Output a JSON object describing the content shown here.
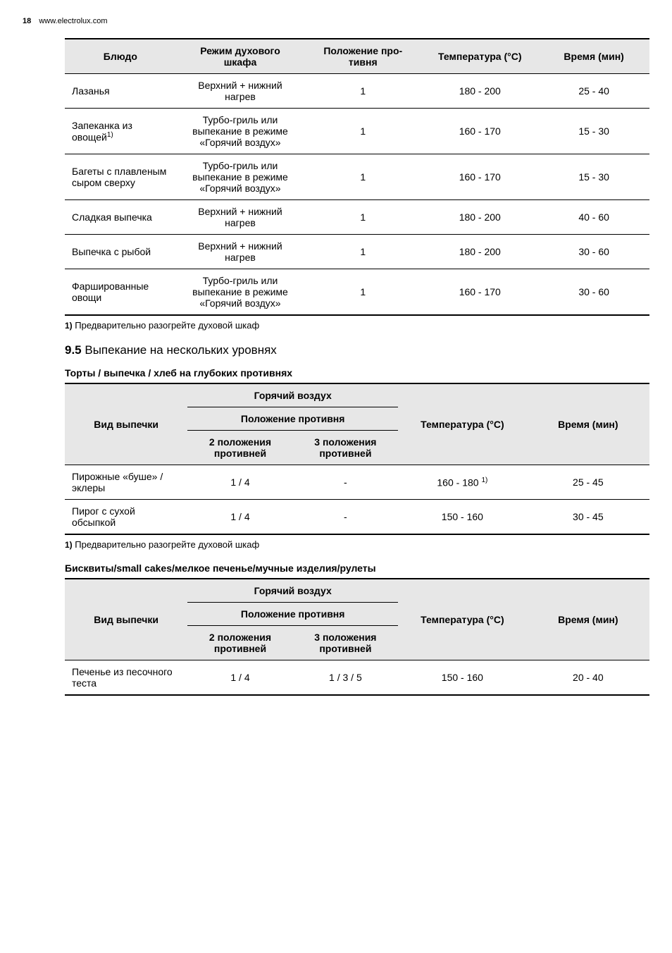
{
  "page": {
    "number": "18",
    "site": "www.electrolux.com"
  },
  "table1": {
    "headers": {
      "dish": "Блюдо",
      "mode": "Режим духового шкафа",
      "pos": "Положение про­тивня",
      "temp": "Температура (°C)",
      "time": "Время (мин)"
    },
    "rows": [
      {
        "dish": "Лазанья",
        "mode": "Верхний + ниж­ний нагрев",
        "pos": "1",
        "temp": "180 - 200",
        "time": "25 - 40"
      },
      {
        "dish": "Запеканка из овощей",
        "dish_sup": "1)",
        "mode": "Турбо-гриль или выпекание в режиме «Го­рячий воздух»",
        "pos": "1",
        "temp": "160 - 170",
        "time": "15 - 30"
      },
      {
        "dish": "Багеты с пла­вленым сыром сверху",
        "mode": "Турбо-гриль или выпекание в режиме «Го­рячий воздух»",
        "pos": "1",
        "temp": "160 - 170",
        "time": "15 - 30"
      },
      {
        "dish": "Сладкая выпеч­ка",
        "mode": "Верхний + ниж­ний нагрев",
        "pos": "1",
        "temp": "180 - 200",
        "time": "40 - 60"
      },
      {
        "dish": "Выпечка с рыб­ой",
        "mode": "Верхний + ниж­ний нагрев",
        "pos": "1",
        "temp": "180 - 200",
        "time": "30 - 60"
      },
      {
        "dish": "Фарширован­ные овощи",
        "mode": "Турбо-гриль или выпекание в режиме «Го­рячий воздух»",
        "pos": "1",
        "temp": "160 - 170",
        "time": "30 - 60"
      }
    ],
    "col_widths": [
      "19%",
      "22%",
      "20%",
      "20%",
      "19%"
    ]
  },
  "footnote1": {
    "num": "1)",
    "text": " Предварительно разогрейте духовой шкаф"
  },
  "section95": {
    "num": "9.5",
    "title": " Выпекание на нескольких уровнях"
  },
  "subhead_torty": "Торты / выпечка / хлеб на глубоких противнях",
  "table2": {
    "headers": {
      "type": "Вид выпечки",
      "hotair": "Горячий воздух",
      "trackpos": "Положение противня",
      "pos2": "2 положения противней",
      "pos3": "3 положения противней",
      "temp": "Температура (°C)",
      "time": "Время (мин)"
    },
    "rows": [
      {
        "type": "Пирожные «бу­ше» / эклеры",
        "p2": "1 / 4",
        "p3": "-",
        "temp": "160 - 180 ",
        "temp_sup": "1)",
        "time": "25 - 45"
      },
      {
        "type": "Пирог с сухой обсыпкой",
        "p2": "1 / 4",
        "p3": "-",
        "temp": "150 - 160",
        "time": "30 - 45"
      }
    ],
    "col_widths": [
      "21%",
      "18%",
      "18%",
      "22%",
      "21%"
    ]
  },
  "footnote2": {
    "num": "1)",
    "text": " Предварительно разогрейте духовой шкаф"
  },
  "subhead_biskvity": "Бисквиты/small cakes/мелкое печенье/мучные изделия/рулеты",
  "table3": {
    "headers": {
      "type": "Вид выпечки",
      "hotair": "Горячий воздух",
      "trackpos": "Положение противня",
      "pos2": "2 положения противней",
      "pos3": "3 положения противней",
      "temp": "Температура (°C)",
      "time": "Время (мин)"
    },
    "rows": [
      {
        "type": "Печенье из пе­сочного теста",
        "p2": "1 / 4",
        "p3": "1 / 3 / 5",
        "temp": "150 - 160",
        "time": "20 - 40"
      }
    ],
    "col_widths": [
      "21%",
      "18%",
      "18%",
      "22%",
      "21%"
    ]
  }
}
